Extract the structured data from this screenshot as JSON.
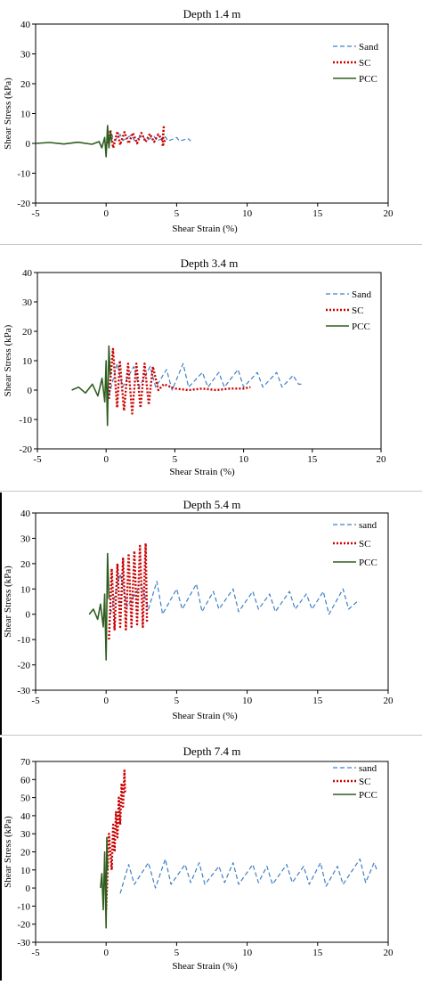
{
  "colors": {
    "sand": "#3f7fc6",
    "sc": "#cc0000",
    "pcc": "#2e5e1e",
    "axis": "#000000"
  },
  "chart_data": [
    {
      "type": "line",
      "title": "Depth 1.4 m",
      "xlabel": "Shear Strain (%)",
      "ylabel": "Shear Stress (kPa)",
      "xlim": [
        -5,
        20
      ],
      "ylim": [
        -20,
        40
      ],
      "xticks": [
        -5,
        0,
        5,
        10,
        15,
        20
      ],
      "yticks": [
        -20,
        -10,
        0,
        10,
        20,
        30,
        40
      ],
      "legend": "top-right",
      "series": [
        {
          "name": "Sand",
          "key": "sand",
          "style": "dashed",
          "x": [
            0.1,
            0.4,
            0.6,
            1.0,
            1.2,
            1.8,
            2.0,
            2.6,
            2.8,
            3.4,
            3.6,
            4.2,
            4.4,
            5.0,
            5.2,
            5.8,
            6.0
          ],
          "y": [
            0.5,
            3.0,
            1.0,
            3.0,
            1.0,
            2.8,
            1.0,
            2.5,
            0.8,
            2.4,
            0.8,
            2.2,
            0.8,
            2.0,
            0.8,
            1.6,
            0.8
          ]
        },
        {
          "name": "SC",
          "key": "sc",
          "style": "dotted",
          "x": [
            0.1,
            0.3,
            0.5,
            0.8,
            1.0,
            1.3,
            1.6,
            1.9,
            2.2,
            2.5,
            2.8,
            3.1,
            3.4,
            3.7,
            4.0,
            4.1,
            4.0,
            4.2
          ],
          "y": [
            0,
            4.5,
            -1.5,
            4.0,
            -0.5,
            3.8,
            0,
            3.5,
            0,
            3.5,
            0.5,
            3.2,
            0.5,
            3.0,
            1.0,
            6.0,
            -1.0,
            1.5
          ]
        },
        {
          "name": "PCC",
          "key": "pcc",
          "style": "solid",
          "x": [
            -5.0,
            -4.0,
            -3.0,
            -2.0,
            -1.0,
            -0.5,
            -0.3,
            -0.1,
            0.0,
            0.1,
            0.2,
            0.3,
            0.4
          ],
          "y": [
            0.0,
            0.3,
            -0.2,
            0.4,
            -0.3,
            0.6,
            -1.5,
            2.0,
            -4.5,
            6.0,
            -1.5,
            4.0,
            0.5
          ]
        }
      ]
    },
    {
      "type": "line",
      "title": "Depth 3.4 m",
      "xlabel": "Shear Strain (%)",
      "ylabel": "Shear Stress (kPa)",
      "xlim": [
        -5,
        20
      ],
      "ylim": [
        -20,
        40
      ],
      "xticks": [
        -5,
        0,
        5,
        10,
        15,
        20
      ],
      "yticks": [
        -20,
        -10,
        0,
        10,
        20,
        30,
        40
      ],
      "legend": "top-right",
      "series": [
        {
          "name": "Sand",
          "key": "sand",
          "style": "dashed",
          "x": [
            0.2,
            0.8,
            1.2,
            2.0,
            2.4,
            3.2,
            3.6,
            4.4,
            4.8,
            5.6,
            6.0,
            7.0,
            7.4,
            8.2,
            8.6,
            9.6,
            10.0,
            11.0,
            11.4,
            12.4,
            12.8,
            13.6,
            14.0,
            14.2
          ],
          "y": [
            -2,
            9,
            1,
            8,
            1,
            8,
            1,
            7,
            0,
            9,
            1,
            6,
            1,
            6,
            1,
            7,
            1,
            6,
            1,
            6,
            1,
            5,
            2,
            2
          ]
        },
        {
          "name": "SC",
          "key": "sc",
          "style": "dotted",
          "x": [
            0.2,
            0.5,
            0.8,
            1.0,
            1.3,
            1.6,
            1.9,
            2.2,
            2.5,
            2.8,
            3.1,
            3.4,
            3.8,
            4.2,
            5.0,
            6.0,
            7.0,
            8.0,
            9.0,
            10.0,
            10.5
          ],
          "y": [
            -3,
            14,
            -6,
            10,
            -7,
            9,
            -8,
            9,
            -6,
            9,
            -5,
            8,
            0,
            2,
            0.5,
            0,
            0.5,
            0,
            0.5,
            0.5,
            1
          ]
        },
        {
          "name": "PCC",
          "key": "pcc",
          "style": "solid",
          "x": [
            -2.5,
            -2.0,
            -1.5,
            -1.0,
            -0.6,
            -0.3,
            -0.1,
            0.0,
            0.1,
            0.2,
            0.3
          ],
          "y": [
            0,
            1,
            -1,
            2,
            -2,
            4,
            -4,
            10,
            -12,
            15,
            5
          ]
        }
      ]
    },
    {
      "type": "line",
      "title": "Depth 5.4 m",
      "xlabel": "Shear Strain (%)",
      "ylabel": "Shear Stress (kPa)",
      "xlim": [
        -5,
        20
      ],
      "ylim": [
        -30,
        40
      ],
      "xticks": [
        -5,
        0,
        5,
        10,
        15,
        20
      ],
      "yticks": [
        -30,
        -20,
        -10,
        0,
        10,
        20,
        30,
        40
      ],
      "legend": "top-right",
      "series": [
        {
          "name": "sand",
          "key": "sand",
          "style": "dashed",
          "x": [
            0.3,
            1.0,
            1.5,
            2.5,
            3.0,
            3.6,
            4.0,
            5.0,
            5.4,
            6.4,
            6.8,
            7.6,
            8.0,
            9.0,
            9.4,
            10.4,
            10.8,
            11.6,
            12.0,
            13.0,
            13.4,
            14.2,
            14.6,
            15.4,
            15.8,
            16.8,
            17.2,
            17.8
          ],
          "y": [
            0,
            16,
            3,
            12,
            2,
            13,
            0,
            10,
            2,
            12,
            1,
            9,
            2,
            10,
            1,
            9,
            2,
            8,
            1,
            9,
            2,
            8,
            2,
            9,
            0,
            10,
            2,
            5
          ]
        },
        {
          "name": "SC",
          "key": "sc",
          "style": "dotted",
          "x": [
            0.2,
            0.4,
            0.6,
            0.8,
            1.0,
            1.2,
            1.4,
            1.6,
            1.8,
            2.0,
            2.2,
            2.4,
            2.6,
            2.8,
            2.9
          ],
          "y": [
            -10,
            18,
            -6,
            20,
            -5,
            22,
            -6,
            24,
            -5,
            25,
            -4,
            27,
            -5,
            28,
            -3
          ]
        },
        {
          "name": "PCC",
          "key": "pcc",
          "style": "solid",
          "x": [
            -1.2,
            -0.9,
            -0.6,
            -0.4,
            -0.2,
            -0.1,
            0.0,
            0.1,
            0.2
          ],
          "y": [
            0,
            2,
            -2,
            4,
            -5,
            8,
            -18,
            24,
            6
          ]
        }
      ]
    },
    {
      "type": "line",
      "title": "Depth 7.4 m",
      "xlabel": "Shear Strain (%)",
      "ylabel": "Shear Stress (kPa)",
      "xlim": [
        -5,
        20
      ],
      "ylim": [
        -30,
        70
      ],
      "xticks": [
        -5,
        0,
        5,
        10,
        15,
        20
      ],
      "yticks": [
        -30,
        -20,
        -10,
        0,
        10,
        20,
        30,
        40,
        50,
        60,
        70
      ],
      "legend": "top-right",
      "series": [
        {
          "name": "sand",
          "key": "sand",
          "style": "dashed",
          "x": [
            1.0,
            1.6,
            2.0,
            3.0,
            3.5,
            4.2,
            4.6,
            5.6,
            6.0,
            6.6,
            7.0,
            8.0,
            8.4,
            9.0,
            9.4,
            10.4,
            10.8,
            11.4,
            11.8,
            12.8,
            13.2,
            14.0,
            14.4,
            15.2,
            15.6,
            16.4,
            16.8,
            18.0,
            18.4,
            19.0,
            19.2
          ],
          "y": [
            -3,
            13,
            2,
            14,
            0,
            16,
            2,
            13,
            3,
            14,
            2,
            12,
            3,
            14,
            2,
            13,
            3,
            12,
            2,
            13,
            3,
            12,
            2,
            14,
            1,
            12,
            2,
            16,
            3,
            14,
            10
          ]
        },
        {
          "name": "SC",
          "key": "sc",
          "style": "dotted",
          "x": [
            0.0,
            0.2,
            0.4,
            0.5,
            0.6,
            0.7,
            0.8,
            0.9,
            1.0,
            1.1,
            1.2,
            1.3,
            1.35
          ],
          "y": [
            -12,
            30,
            10,
            35,
            20,
            42,
            28,
            50,
            35,
            58,
            45,
            65,
            52
          ]
        },
        {
          "name": "PCC",
          "key": "pcc",
          "style": "solid",
          "x": [
            -0.4,
            -0.3,
            -0.2,
            -0.1,
            0.0,
            0.05,
            0.1
          ],
          "y": [
            0,
            8,
            -12,
            20,
            -22,
            28,
            10
          ]
        }
      ]
    }
  ]
}
